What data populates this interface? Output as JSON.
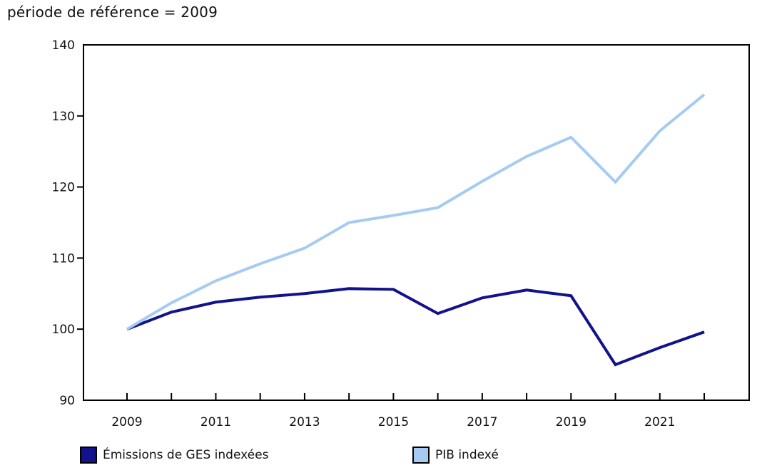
{
  "title": "période de référence = 2009",
  "legend": {
    "items": [
      {
        "label": "Émissions de GES indexées",
        "color": "#12128c"
      },
      {
        "label": "PIB indexé",
        "color": "#a6cbf2"
      }
    ]
  },
  "colors": {
    "axis": "#000000",
    "tick_text": "#111111",
    "ges_line": "#12128c",
    "pib_line": "#a6cbf2"
  },
  "chart_data": {
    "type": "line",
    "title": "période de référence = 2009",
    "x": [
      2009,
      2010,
      2011,
      2012,
      2013,
      2014,
      2015,
      2016,
      2017,
      2018,
      2019,
      2020,
      2021,
      2022
    ],
    "series": [
      {
        "name": "Émissions de GES indexées",
        "color": "#12128c",
        "values": [
          100.0,
          102.4,
          103.8,
          104.5,
          105.0,
          105.7,
          105.6,
          102.2,
          104.4,
          105.5,
          104.7,
          95.0,
          97.4,
          99.6
        ]
      },
      {
        "name": "PIB indexé",
        "color": "#a6cbf2",
        "values": [
          100.0,
          103.7,
          106.8,
          109.2,
          111.4,
          115.0,
          116.0,
          117.1,
          120.8,
          124.3,
          127.0,
          120.7,
          127.9,
          133.0
        ]
      }
    ],
    "ylim": [
      90,
      140
    ],
    "yticks": [
      90,
      100,
      110,
      120,
      130,
      140
    ],
    "xtick_labels": [
      "2009",
      "2011",
      "2013",
      "2015",
      "2017",
      "2019",
      "2021"
    ],
    "grid": false,
    "legend_position": "bottom"
  }
}
